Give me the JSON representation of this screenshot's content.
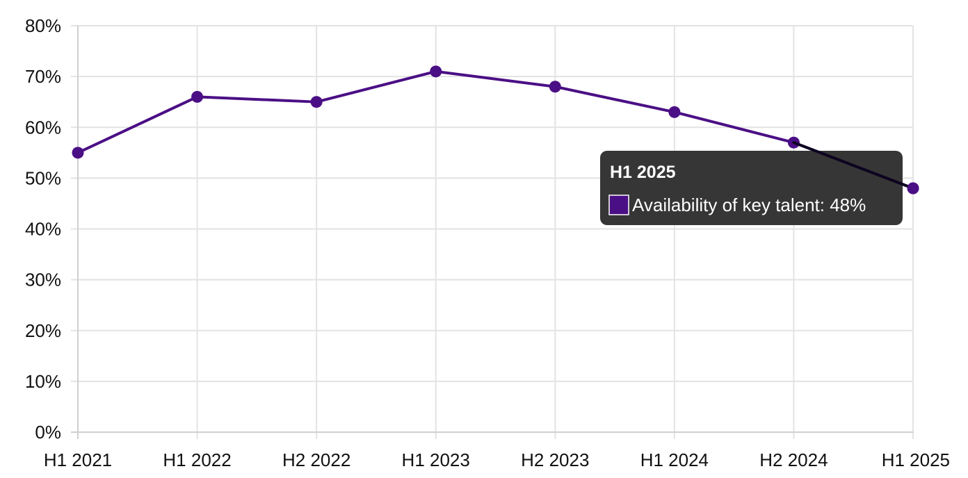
{
  "chart_data": {
    "type": "line",
    "categories": [
      "H1 2021",
      "H1 2022",
      "H2 2022",
      "H1 2023",
      "H2 2023",
      "H1 2024",
      "H2 2024",
      "H1 2025"
    ],
    "series": [
      {
        "name": "Availability of key talent",
        "values": [
          55,
          66,
          65,
          71,
          68,
          63,
          57,
          48
        ],
        "color": "#4b0f85"
      }
    ],
    "ylim": [
      0,
      80
    ],
    "yticks": [
      0,
      10,
      20,
      30,
      40,
      50,
      60,
      70,
      80
    ],
    "y_tick_suffix": "%",
    "grid": true,
    "tooltip": {
      "category": "H1 2025",
      "series_name": "Availability of key talent",
      "value_text": "48%",
      "label": "Availability of key talent: 48%"
    }
  }
}
